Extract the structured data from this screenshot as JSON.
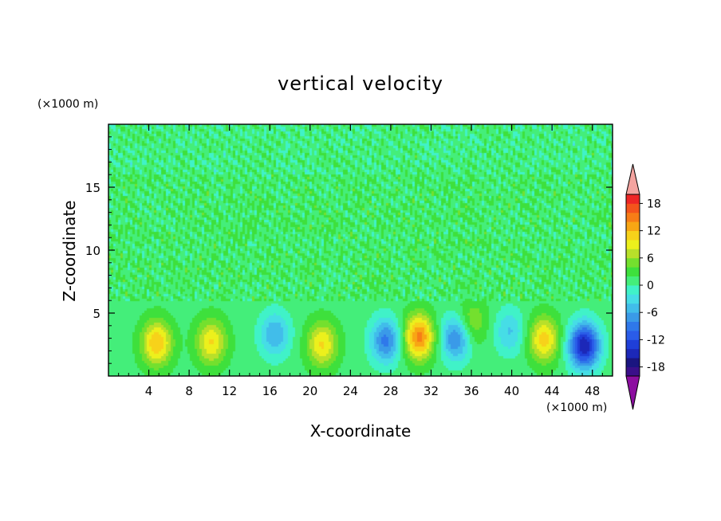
{
  "chart_data": {
    "type": "heatmap",
    "title": "vertical velocity",
    "xlabel": "X-coordinate",
    "ylabel": "Z-coordinate",
    "x_unit": "(×1000 m)",
    "y_unit": "(×1000 m)",
    "xlim": [
      0,
      50
    ],
    "ylim": [
      0,
      20
    ],
    "x_ticks": [
      4,
      8,
      12,
      16,
      20,
      24,
      28,
      32,
      36,
      40,
      44,
      48
    ],
    "y_ticks": [
      5,
      10,
      15
    ],
    "colorbar": {
      "ticks": [
        18,
        12,
        6,
        0,
        -6,
        -12,
        -18
      ],
      "levels": [
        -20,
        -18,
        -16,
        -14,
        -12,
        -10,
        -8,
        -6,
        -4,
        -2,
        0,
        2,
        4,
        6,
        8,
        10,
        12,
        14,
        16,
        18,
        20
      ],
      "colors": [
        "#3a0f8a",
        "#1a1580",
        "#1c28b8",
        "#1f3fd8",
        "#2a5ce8",
        "#2f78ea",
        "#3a9ae8",
        "#41bdea",
        "#46dde6",
        "#40f2c8",
        "#44ee7a",
        "#3ee03c",
        "#74e02e",
        "#b8e02a",
        "#ecf01c",
        "#f7d21a",
        "#f8a614",
        "#f77d16",
        "#f4541c",
        "#ee2626"
      ],
      "over_color": "#f4a4a0",
      "under_color": "#8c0ea0"
    },
    "field": {
      "background": 1.2,
      "upper_layer_min_z": 6,
      "cells": [
        {
          "x": 4.8,
          "z": 2.6,
          "w": 0.6
        },
        {
          "x": 10.2,
          "z": 2.7,
          "w": 0.5
        },
        {
          "x": 16.5,
          "z": 3.3,
          "w": -0.4
        },
        {
          "x": 21.2,
          "z": 2.5,
          "w": 0.5
        },
        {
          "x": 27.5,
          "z": 2.8,
          "w": -0.55
        },
        {
          "x": 30.8,
          "z": 3.1,
          "w": 0.75
        },
        {
          "x": 34.5,
          "z": 3.0,
          "w": -0.55
        },
        {
          "x": 36.0,
          "z": 4.2,
          "w": 0.3
        },
        {
          "x": 39.8,
          "z": 3.5,
          "w": -0.3
        },
        {
          "x": 43.2,
          "z": 2.9,
          "w": 0.55
        },
        {
          "x": 47.2,
          "z": 2.4,
          "w": -0.95
        }
      ]
    }
  }
}
